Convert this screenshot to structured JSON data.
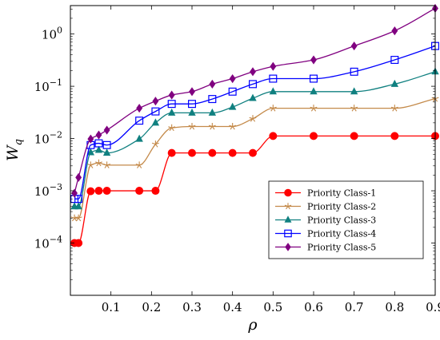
{
  "chart_data": {
    "type": "line",
    "xlabel": "ρ",
    "ylabel_main": "W",
    "ylabel_sub": "q",
    "yscale": "log",
    "xlim": [
      0,
      0.9
    ],
    "ylim": [
      1e-05,
      3.5
    ],
    "grid": false,
    "legend_position": "lower-right",
    "x_ticks": [
      {
        "value": 0.1,
        "label": "0.1"
      },
      {
        "value": 0.2,
        "label": "0.2"
      },
      {
        "value": 0.3,
        "label": "0.3"
      },
      {
        "value": 0.4,
        "label": "0.4"
      },
      {
        "value": 0.5,
        "label": "0.5"
      },
      {
        "value": 0.6,
        "label": "0.6"
      },
      {
        "value": 0.7,
        "label": "0.7"
      },
      {
        "value": 0.8,
        "label": "0.8"
      },
      {
        "value": 0.9,
        "label": "0.9"
      }
    ],
    "y_ticks": [
      {
        "value": 0.0001,
        "base": "10",
        "exp": "−4"
      },
      {
        "value": 0.001,
        "base": "10",
        "exp": "−3"
      },
      {
        "value": 0.01,
        "base": "10",
        "exp": "−2"
      },
      {
        "value": 0.1,
        "base": "10",
        "exp": "−1"
      },
      {
        "value": 1,
        "base": "10",
        "exp": "0"
      }
    ],
    "series": [
      {
        "name": "Priority Class-1",
        "color": "#ff0000",
        "marker": "circle",
        "x": [
          0.01,
          0.02,
          0.05,
          0.07,
          0.09,
          0.17,
          0.21,
          0.25,
          0.3,
          0.35,
          0.4,
          0.45,
          0.5,
          0.6,
          0.7,
          0.8,
          0.9
        ],
        "y": [
          0.0001,
          0.0001,
          0.00098,
          0.001,
          0.001,
          0.001,
          0.001,
          0.0053,
          0.0053,
          0.0053,
          0.0053,
          0.0053,
          0.0112,
          0.0112,
          0.0112,
          0.0112,
          0.0112
        ]
      },
      {
        "name": "Priority Class-2",
        "color": "#c48a4a",
        "marker": "star",
        "x": [
          0.01,
          0.02,
          0.05,
          0.07,
          0.09,
          0.17,
          0.21,
          0.25,
          0.3,
          0.35,
          0.4,
          0.45,
          0.5,
          0.6,
          0.7,
          0.8,
          0.9
        ],
        "y": [
          0.0003,
          0.0003,
          0.0031,
          0.0034,
          0.0031,
          0.0031,
          0.0078,
          0.016,
          0.017,
          0.017,
          0.017,
          0.024,
          0.038,
          0.038,
          0.038,
          0.038,
          0.058
        ]
      },
      {
        "name": "Priority Class-3",
        "color": "#108080",
        "marker": "triangle",
        "x": [
          0.01,
          0.02,
          0.05,
          0.07,
          0.09,
          0.17,
          0.21,
          0.25,
          0.3,
          0.35,
          0.4,
          0.45,
          0.5,
          0.6,
          0.7,
          0.8,
          0.9
        ],
        "y": [
          0.0005,
          0.0005,
          0.0054,
          0.006,
          0.0053,
          0.0098,
          0.02,
          0.031,
          0.031,
          0.031,
          0.04,
          0.059,
          0.079,
          0.079,
          0.079,
          0.11,
          0.19
        ]
      },
      {
        "name": "Priority Class-4",
        "color": "#0000ff",
        "marker": "square",
        "x": [
          0.01,
          0.02,
          0.05,
          0.07,
          0.09,
          0.17,
          0.21,
          0.25,
          0.3,
          0.35,
          0.4,
          0.45,
          0.5,
          0.6,
          0.7,
          0.8,
          0.9
        ],
        "y": [
          0.0007,
          0.0007,
          0.0075,
          0.0081,
          0.0075,
          0.022,
          0.033,
          0.046,
          0.046,
          0.057,
          0.079,
          0.11,
          0.14,
          0.14,
          0.19,
          0.32,
          0.59
        ]
      },
      {
        "name": "Priority Class-5",
        "color": "#800080",
        "marker": "diamond",
        "x": [
          0.01,
          0.02,
          0.05,
          0.07,
          0.09,
          0.17,
          0.21,
          0.25,
          0.3,
          0.35,
          0.4,
          0.45,
          0.5,
          0.6,
          0.7,
          0.8,
          0.9
        ],
        "y": [
          0.0009,
          0.0018,
          0.0098,
          0.0117,
          0.0145,
          0.038,
          0.052,
          0.068,
          0.079,
          0.11,
          0.14,
          0.19,
          0.24,
          0.32,
          0.59,
          1.15,
          3.1
        ]
      }
    ]
  }
}
